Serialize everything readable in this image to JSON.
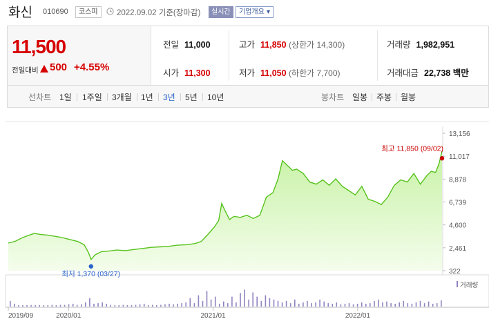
{
  "header": {
    "name": "화신",
    "code": "010690",
    "market": "코스피",
    "date": "2022.09.02",
    "date_suffix": "기준(장마감)",
    "realtime_label": "실시간",
    "company_label": "기업개요 ▾"
  },
  "price": {
    "current": "11,500",
    "change_label": "전일대비",
    "change": "500",
    "change_pct": "+4.55%",
    "direction_color": "#d60000"
  },
  "stats": {
    "prev_close_label": "전일",
    "prev_close": "11,000",
    "high_label": "고가",
    "high": "11,850",
    "upper_limit": "(상한가 14,300)",
    "volume_label": "거래량",
    "volume": "1,982,951",
    "open_label": "시가",
    "open": "11,300",
    "low_label": "저가",
    "low": "11,050",
    "lower_limit": "(하한가 7,700)",
    "amount_label": "거래대금",
    "amount": "22,738",
    "amount_unit": "백만"
  },
  "periods": {
    "line_label": "선차트",
    "line_items": [
      "1일",
      "1주일",
      "3개월",
      "1년",
      "3년",
      "5년",
      "10년"
    ],
    "selected": "3년",
    "candle_label": "봉차트",
    "candle_items": [
      "일봉",
      "주봉",
      "월봉"
    ]
  },
  "chart_data": {
    "type": "area",
    "ylim": [
      322,
      13156
    ],
    "y_ticks": [
      "13,156",
      "11,017",
      "8,878",
      "6,739",
      "4,600",
      "2,461",
      "322"
    ],
    "x_ticks": [
      {
        "label": "2019/09",
        "t": 0.0
      },
      {
        "label": "2020/01",
        "t": 0.1389
      },
      {
        "label": "2021/01",
        "t": 0.4722
      },
      {
        "label": "2022/01",
        "t": 0.8056
      }
    ],
    "start": "2019/09",
    "end": "2022/09/02",
    "max": {
      "label": "최고 11,850 (09/02)",
      "value": 11850,
      "t": 1.0
    },
    "min": {
      "label": "최저 1,370 (03/27)",
      "value": 1370,
      "t": 0.1907
    },
    "price_series": [
      [
        0.0,
        2900
      ],
      [
        0.015,
        3050
      ],
      [
        0.03,
        3350
      ],
      [
        0.045,
        3600
      ],
      [
        0.06,
        3800
      ],
      [
        0.075,
        3700
      ],
      [
        0.09,
        3650
      ],
      [
        0.105,
        3550
      ],
      [
        0.12,
        3450
      ],
      [
        0.14,
        3250
      ],
      [
        0.16,
        3050
      ],
      [
        0.175,
        2750
      ],
      [
        0.185,
        2000
      ],
      [
        0.191,
        1370
      ],
      [
        0.2,
        1800
      ],
      [
        0.215,
        2100
      ],
      [
        0.23,
        2150
      ],
      [
        0.25,
        2250
      ],
      [
        0.27,
        2200
      ],
      [
        0.29,
        2300
      ],
      [
        0.31,
        2400
      ],
      [
        0.33,
        2500
      ],
      [
        0.35,
        2550
      ],
      [
        0.37,
        2600
      ],
      [
        0.39,
        2700
      ],
      [
        0.41,
        2750
      ],
      [
        0.43,
        2850
      ],
      [
        0.445,
        3050
      ],
      [
        0.46,
        3700
      ],
      [
        0.475,
        4400
      ],
      [
        0.485,
        5000
      ],
      [
        0.492,
        6600
      ],
      [
        0.5,
        5900
      ],
      [
        0.51,
        5100
      ],
      [
        0.52,
        5400
      ],
      [
        0.535,
        5300
      ],
      [
        0.55,
        5500
      ],
      [
        0.565,
        5200
      ],
      [
        0.58,
        5500
      ],
      [
        0.595,
        7200
      ],
      [
        0.61,
        7600
      ],
      [
        0.622,
        8900
      ],
      [
        0.632,
        10600
      ],
      [
        0.642,
        10200
      ],
      [
        0.655,
        9700
      ],
      [
        0.665,
        9800
      ],
      [
        0.68,
        9400
      ],
      [
        0.695,
        8600
      ],
      [
        0.71,
        8400
      ],
      [
        0.725,
        8800
      ],
      [
        0.74,
        8300
      ],
      [
        0.755,
        8900
      ],
      [
        0.77,
        8200
      ],
      [
        0.785,
        7800
      ],
      [
        0.8,
        7400
      ],
      [
        0.815,
        8200
      ],
      [
        0.83,
        7000
      ],
      [
        0.845,
        6800
      ],
      [
        0.86,
        6500
      ],
      [
        0.875,
        7200
      ],
      [
        0.89,
        8300
      ],
      [
        0.905,
        8800
      ],
      [
        0.92,
        8600
      ],
      [
        0.935,
        9400
      ],
      [
        0.95,
        8400
      ],
      [
        0.965,
        9200
      ],
      [
        0.975,
        9600
      ],
      [
        0.985,
        9500
      ],
      [
        0.993,
        10300
      ],
      [
        1.0,
        11500
      ]
    ],
    "volume_label": "거래량",
    "volume_series": [
      0.2,
      0.1,
      0.05,
      0.05,
      0.05,
      0.05,
      0.05,
      0.05,
      0.05,
      0.05,
      0.06,
      0.05,
      0.06,
      0.06,
      0.08,
      0.1,
      0.06,
      0.08,
      0.15,
      0.3,
      0.1,
      0.12,
      0.15,
      0.1,
      0.06,
      0.05,
      0.05,
      0.06,
      0.05,
      0.05,
      0.06,
      0.08,
      0.1,
      0.05,
      0.06,
      0.05,
      0.06,
      0.08,
      0.1,
      0.08,
      0.1,
      0.12,
      0.15,
      0.3,
      0.12,
      0.4,
      0.2,
      0.55,
      0.25,
      0.35,
      0.1,
      0.18,
      0.12,
      0.35,
      0.15,
      0.48,
      0.6,
      0.25,
      0.5,
      0.35,
      0.2,
      0.4,
      0.3,
      0.25,
      0.2,
      0.15,
      0.2,
      0.12,
      0.25,
      0.1,
      0.15,
      0.2,
      0.12,
      0.15,
      0.25,
      0.18,
      0.12,
      0.1,
      0.15,
      0.08,
      0.1,
      0.12,
      0.08,
      0.1,
      0.15,
      0.1,
      0.12,
      0.2,
      0.25,
      0.15,
      0.18,
      0.12,
      0.1,
      0.15,
      0.2,
      0.12,
      0.1,
      0.15,
      0.2,
      0.12,
      0.18,
      0.1,
      0.12,
      0.22
    ],
    "colors": {
      "line": "#55c21b",
      "fill_top": "#c8f2a6",
      "fill_bottom": "#f4fdec",
      "max": "#cc0000",
      "min": "#2a62c9",
      "volume": "#9182c0"
    }
  }
}
